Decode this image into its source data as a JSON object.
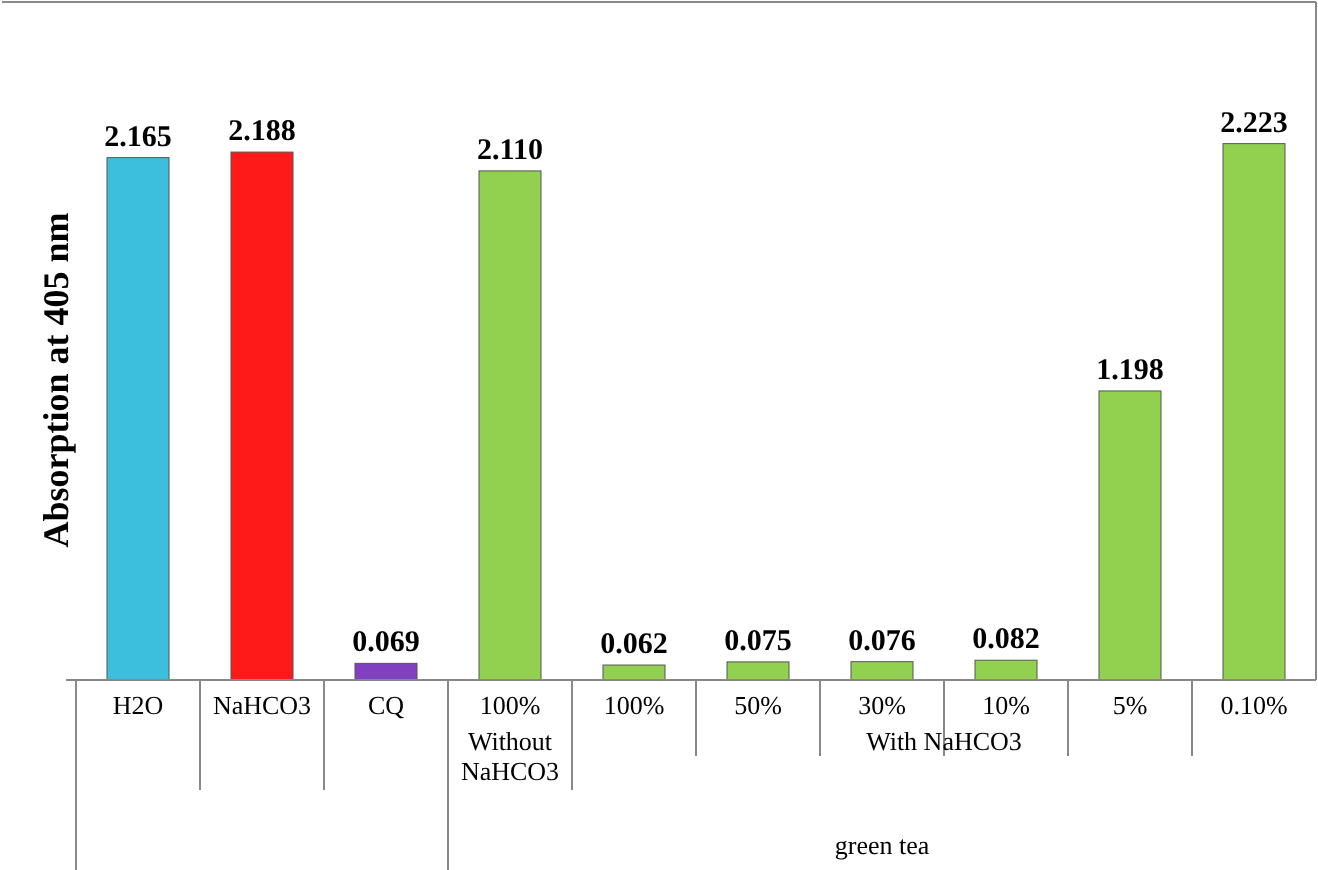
{
  "chart_data": {
    "type": "bar",
    "ylabel": "Absorption at 405 nm",
    "categories": [
      "H2O",
      "NaHCO3",
      "CQ",
      "100%",
      "100%",
      "50%",
      "30%",
      "10%",
      "5%",
      "0.10%"
    ],
    "values": [
      2.165,
      2.188,
      0.069,
      2.11,
      0.062,
      0.075,
      0.076,
      0.082,
      1.198,
      2.223
    ],
    "colors": [
      "#3cbfdc",
      "#ff1a1a",
      "#8040c0",
      "#92d050",
      "#92d050",
      "#92d050",
      "#92d050",
      "#92d050",
      "#92d050",
      "#92d050"
    ],
    "value_labels": [
      "2.165",
      "2.188",
      "0.069",
      "2.110",
      "0.062",
      "0.075",
      "0.076",
      "0.082",
      "1.198",
      "2.223"
    ],
    "annotations": [
      "Without NaHCO3",
      "With NaHCO3",
      "green tea"
    ]
  }
}
